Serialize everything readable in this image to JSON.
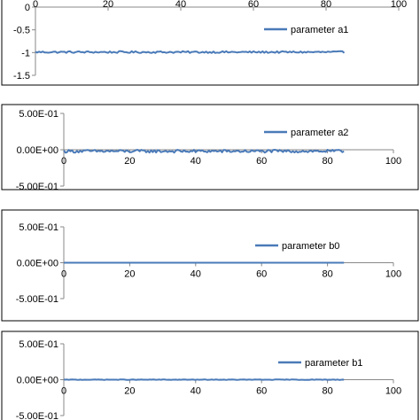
{
  "chart_data": [
    {
      "type": "line",
      "xlim": [
        0,
        100
      ],
      "ylim": [
        -1.5,
        0
      ],
      "x_ticks": [
        "0",
        "20",
        "40",
        "60",
        "80",
        "100"
      ],
      "y_ticks": [
        "0",
        "-0.5",
        "-1",
        "-1.5"
      ],
      "x_axis_at": 0,
      "grid": false,
      "legend_position": "top-right",
      "series": [
        {
          "name": "parameter a1",
          "color": "#4a7ab8",
          "x_range": [
            0,
            85
          ],
          "base": -0.99,
          "amplitude": 0.02
        }
      ]
    },
    {
      "type": "line",
      "xlim": [
        0,
        100
      ],
      "ylim": [
        -0.5,
        0.5
      ],
      "x_ticks": [
        "0",
        "20",
        "40",
        "60",
        "80",
        "100"
      ],
      "y_ticks": [
        "5.00E-01",
        "0.00E+00",
        "-5.00E-01"
      ],
      "x_axis_at": 0,
      "grid": false,
      "legend_position": "top-right",
      "series": [
        {
          "name": "parameter a2",
          "color": "#4a7ab8",
          "x_range": [
            0,
            85
          ],
          "base": -0.02,
          "amplitude": 0.02
        }
      ]
    },
    {
      "type": "line",
      "xlim": [
        0,
        100
      ],
      "ylim": [
        -0.5,
        0.5
      ],
      "x_ticks": [
        "0",
        "20",
        "40",
        "60",
        "80",
        "100"
      ],
      "y_ticks": [
        "5.00E-01",
        "0.00E+00",
        "-5.00E-01"
      ],
      "x_axis_at": 0,
      "grid": false,
      "legend_position": "right",
      "series": [
        {
          "name": "parameter b0",
          "color": "#4a7ab8",
          "x_range": [
            0,
            85
          ],
          "base": 0.0,
          "amplitude": 0.0
        }
      ]
    },
    {
      "type": "line",
      "xlim": [
        0,
        100
      ],
      "ylim": [
        -0.5,
        0.5
      ],
      "x_ticks": [
        "0",
        "20",
        "40",
        "60",
        "80",
        "100"
      ],
      "y_ticks": [
        "5.00E-01",
        "0.00E+00",
        "-5.00E-01"
      ],
      "x_axis_at": 0,
      "grid": false,
      "legend_position": "right",
      "series": [
        {
          "name": "parameter b1",
          "color": "#4a7ab8",
          "x_range": [
            0,
            85
          ],
          "base": 0.0,
          "amplitude": 0.003
        }
      ]
    }
  ]
}
